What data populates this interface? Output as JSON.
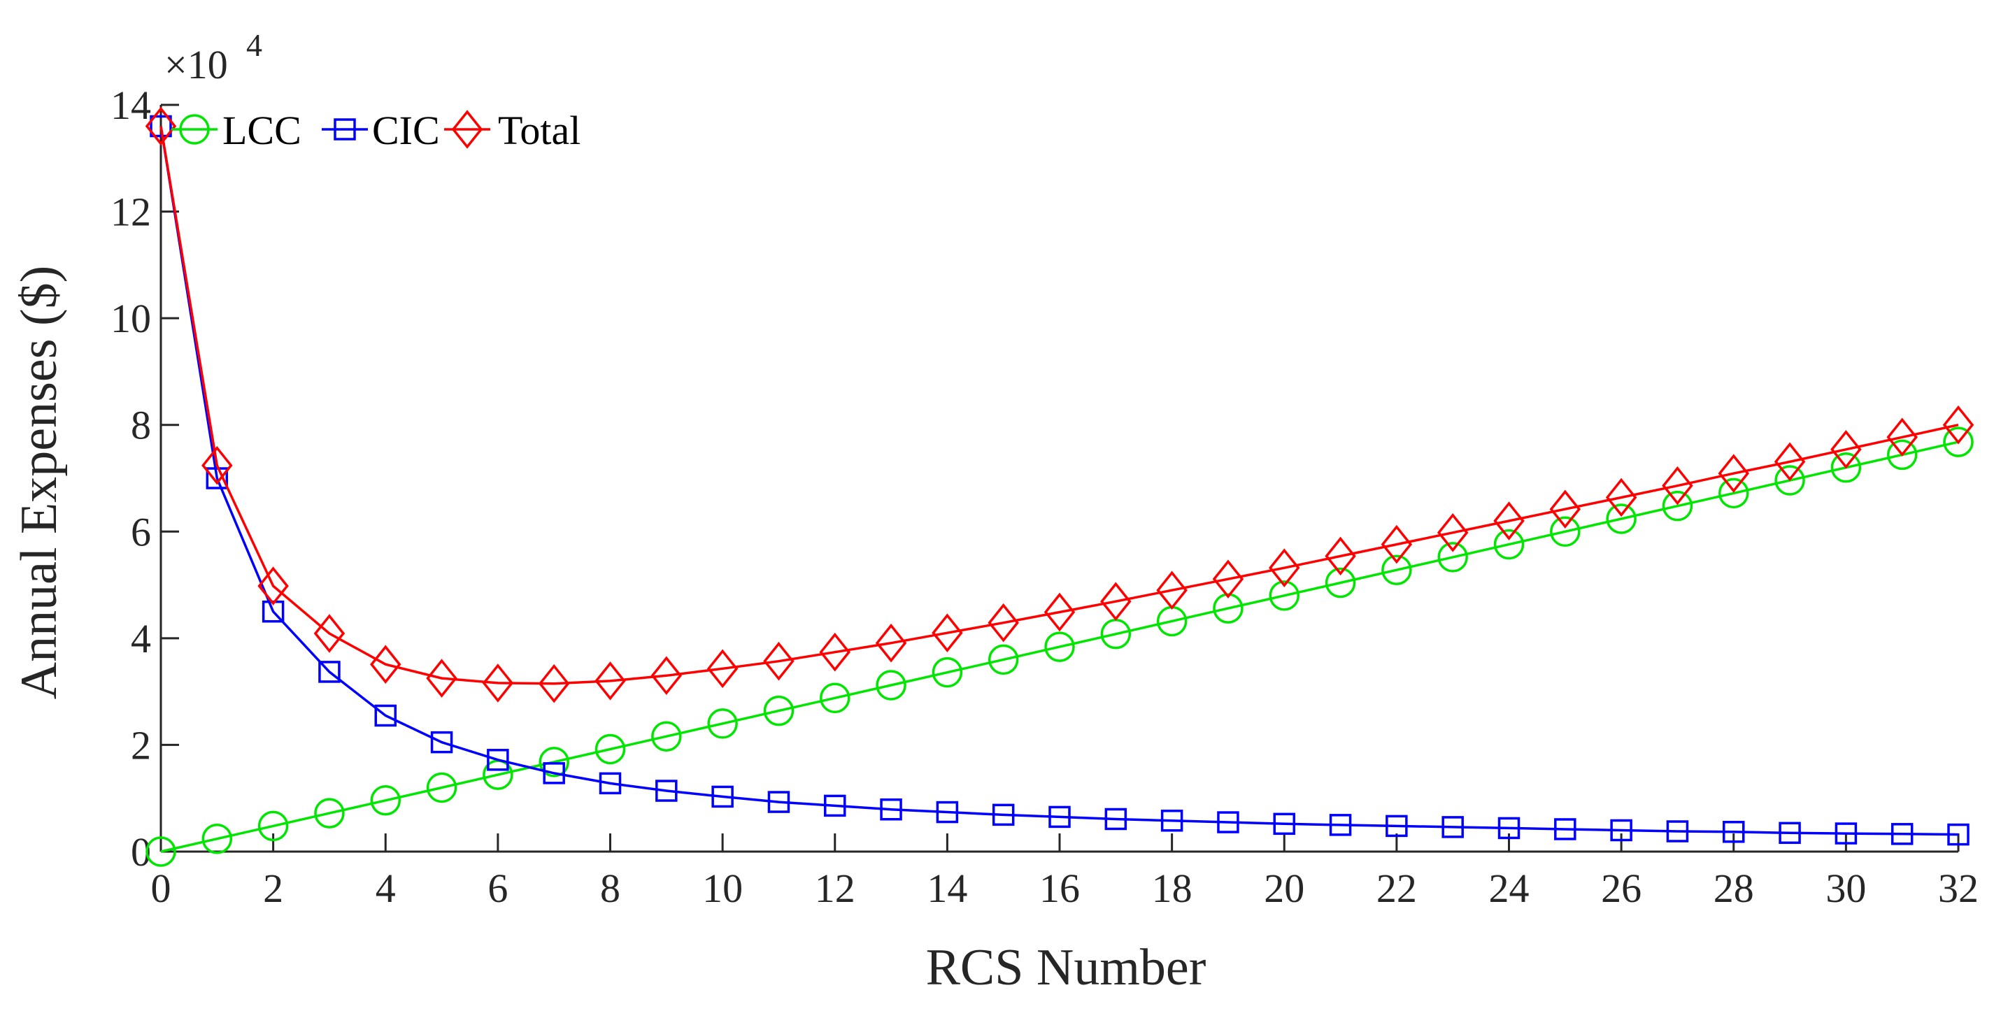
{
  "chart_data": {
    "type": "line",
    "xlabel": "RCS Number",
    "ylabel": "Annual Expenses ($)",
    "y_multiplier_label": "×10",
    "y_multiplier_exponent": "4",
    "xlim": [
      0,
      32
    ],
    "ylim": [
      0,
      14
    ],
    "x_ticks": [
      "0",
      "2",
      "4",
      "6",
      "8",
      "10",
      "12",
      "14",
      "16",
      "18",
      "20",
      "22",
      "24",
      "26",
      "28",
      "30",
      "32"
    ],
    "y_ticks": [
      "0",
      "2",
      "4",
      "6",
      "8",
      "10",
      "12",
      "14"
    ],
    "grid": false,
    "legend_position": "top-left",
    "x": [
      0,
      1,
      2,
      3,
      4,
      5,
      6,
      7,
      8,
      9,
      10,
      11,
      12,
      13,
      14,
      15,
      16,
      17,
      18,
      19,
      20,
      21,
      22,
      23,
      24,
      25,
      26,
      27,
      28,
      29,
      30,
      31,
      32
    ],
    "series": [
      {
        "name": "LCC",
        "color": "#00e600",
        "marker": "circle",
        "values": [
          0,
          0.24,
          0.48,
          0.72,
          0.96,
          1.2,
          1.44,
          1.68,
          1.92,
          2.16,
          2.4,
          2.64,
          2.88,
          3.12,
          3.36,
          3.6,
          3.84,
          4.08,
          4.32,
          4.56,
          4.8,
          5.04,
          5.28,
          5.52,
          5.76,
          6.0,
          6.24,
          6.48,
          6.72,
          6.96,
          7.2,
          7.44,
          7.68
        ]
      },
      {
        "name": "CIC",
        "color": "#0000ff",
        "marker": "square",
        "values": [
          13.6,
          7.0,
          4.5,
          3.37,
          2.55,
          2.05,
          1.72,
          1.47,
          1.28,
          1.14,
          1.03,
          0.93,
          0.86,
          0.79,
          0.74,
          0.69,
          0.65,
          0.61,
          0.58,
          0.55,
          0.52,
          0.5,
          0.48,
          0.46,
          0.44,
          0.42,
          0.4,
          0.38,
          0.37,
          0.35,
          0.34,
          0.33,
          0.32
        ]
      },
      {
        "name": "Total",
        "color": "#ff0000",
        "marker": "diamond",
        "values": [
          13.6,
          7.24,
          4.98,
          4.09,
          3.51,
          3.25,
          3.16,
          3.15,
          3.2,
          3.3,
          3.43,
          3.57,
          3.74,
          3.91,
          4.1,
          4.29,
          4.49,
          4.69,
          4.9,
          5.11,
          5.32,
          5.54,
          5.76,
          5.98,
          6.2,
          6.42,
          6.64,
          6.86,
          7.09,
          7.31,
          7.54,
          7.77,
          8.0
        ]
      }
    ]
  }
}
